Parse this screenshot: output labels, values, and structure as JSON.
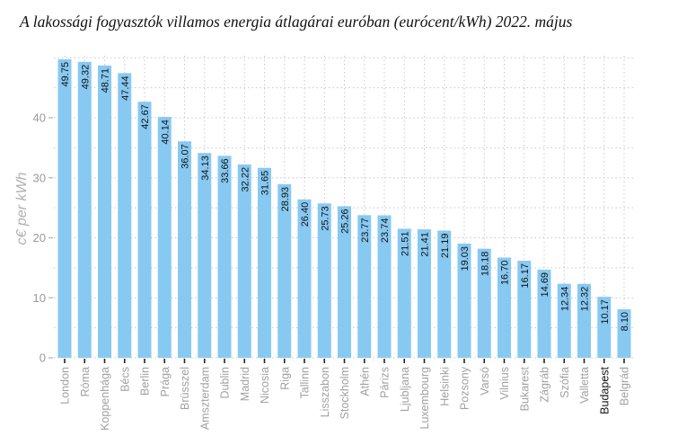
{
  "chart_data": {
    "type": "bar",
    "title": "A lakossági fogyasztók villamos energia átlagárai euróban (eurócent/kWh) 2022. május",
    "xlabel": "",
    "ylabel": "c€ per kWh",
    "ylim": [
      0,
      50
    ],
    "yticks": [
      0,
      10,
      20,
      30,
      40
    ],
    "grid": true,
    "bar_color": "#88c9f2",
    "highlight_category": "Budapest",
    "categories": [
      "London",
      "Róma",
      "Koppenhága",
      "Bécs",
      "Berlin",
      "Prága",
      "Brüsszel",
      "Amszterdam",
      "Dublin",
      "Madrid",
      "Nicosia",
      "Riga",
      "Tallinn",
      "Lisszabon",
      "Stockholm",
      "Athén",
      "Párizs",
      "Ljubljana",
      "Luxembourg",
      "Helsinki",
      "Pozsony",
      "Varsó",
      "Vilnius",
      "Bukarest",
      "Zágráb",
      "Szófia",
      "Valletta",
      "Budapest",
      "Belgrád"
    ],
    "values": [
      49.75,
      49.32,
      48.71,
      47.44,
      42.67,
      40.14,
      36.07,
      34.13,
      33.66,
      32.22,
      31.65,
      28.93,
      26.4,
      25.73,
      25.26,
      23.77,
      23.74,
      21.51,
      21.41,
      21.19,
      19.03,
      18.18,
      16.7,
      16.17,
      14.69,
      12.34,
      12.32,
      10.17,
      8.1
    ],
    "value_labels": [
      "49.75",
      "49.32",
      "48.71",
      "47.44",
      "42.67",
      "40.14",
      "36.07",
      "34.13",
      "33.66",
      "32.22",
      "31.65",
      "28.93",
      "26.40",
      "25.73",
      "25.26",
      "23.77",
      "23.74",
      "21.51",
      "21.41",
      "21.19",
      "19.03",
      "18.18",
      "16.70",
      "16.17",
      "14.69",
      "12.34",
      "12.32",
      "10.17",
      "8.10"
    ]
  }
}
